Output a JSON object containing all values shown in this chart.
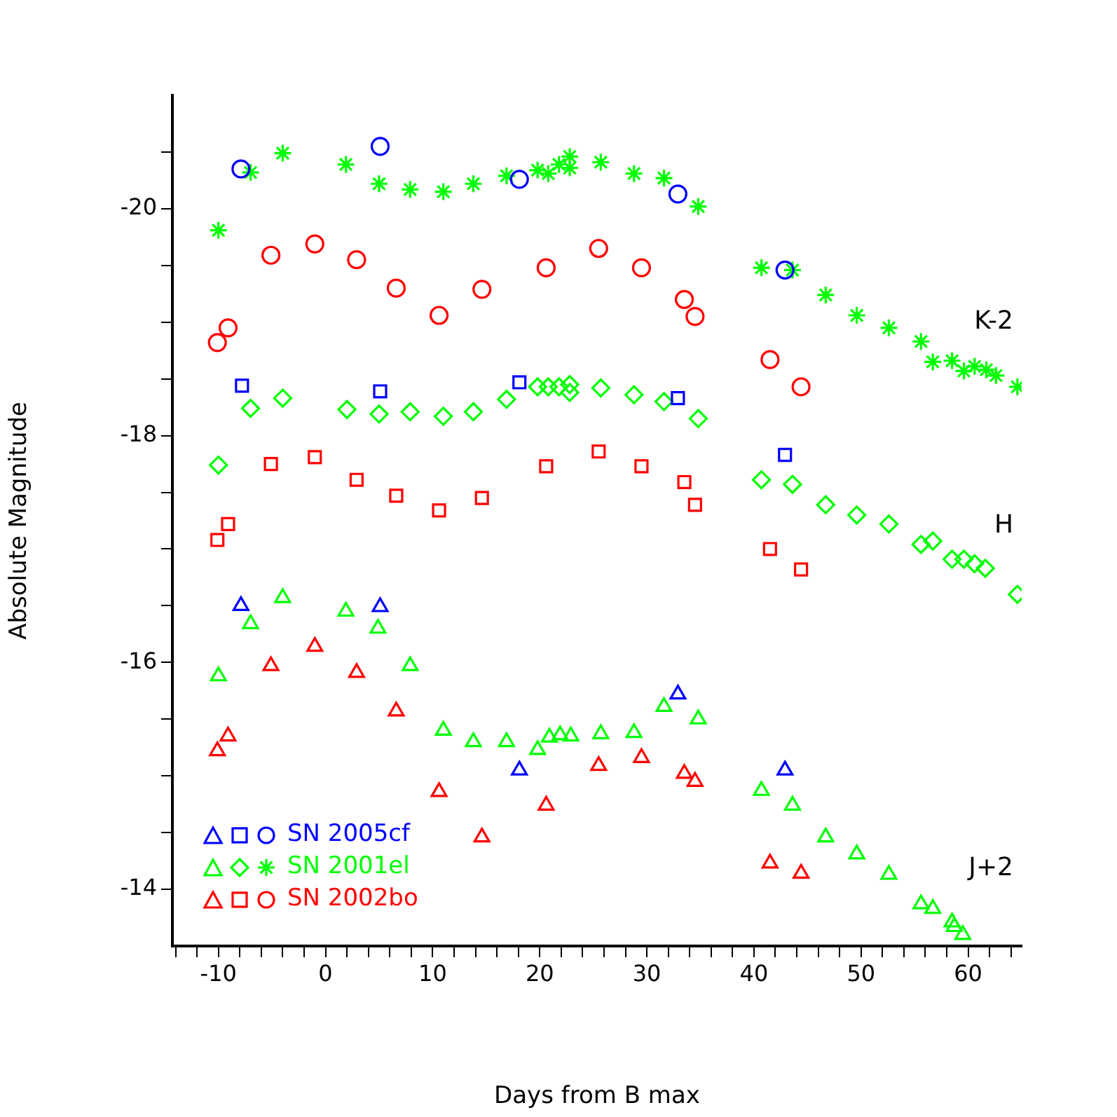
{
  "chart_data": {
    "type": "scatter",
    "xlabel": "Days from B max",
    "ylabel": "Absolute Magnitude",
    "xlim": [
      -14.3,
      65
    ],
    "xticks": [
      {
        "value": -14,
        "label": null
      },
      {
        "value": -12,
        "label": null
      },
      -10,
      {
        "value": -8,
        "label": null
      },
      {
        "value": -6,
        "label": null
      },
      {
        "value": -4,
        "label": null
      },
      {
        "value": -2,
        "label": null
      },
      0,
      {
        "value": 2,
        "label": null
      },
      {
        "value": 4,
        "label": null
      },
      {
        "value": 6,
        "label": null
      },
      {
        "value": 8,
        "label": null
      },
      10,
      {
        "value": 12,
        "label": null
      },
      {
        "value": 14,
        "label": null
      },
      {
        "value": 16,
        "label": null
      },
      {
        "value": 18,
        "label": null
      },
      20,
      {
        "value": 22,
        "label": null
      },
      {
        "value": 24,
        "label": null
      },
      {
        "value": 26,
        "label": null
      },
      {
        "value": 28,
        "label": null
      },
      30,
      {
        "value": 32,
        "label": null
      },
      {
        "value": 34,
        "label": null
      },
      {
        "value": 36,
        "label": null
      },
      {
        "value": 38,
        "label": null
      },
      40,
      {
        "value": 42,
        "label": null
      },
      {
        "value": 44,
        "label": null
      },
      {
        "value": 46,
        "label": null
      },
      {
        "value": 48,
        "label": null
      },
      50,
      {
        "value": 52,
        "label": null
      },
      {
        "value": 54,
        "label": null
      },
      {
        "value": 56,
        "label": null
      },
      {
        "value": 58,
        "label": null
      },
      60,
      {
        "value": 62,
        "label": null
      },
      {
        "value": 64,
        "label": null
      }
    ],
    "ylim": [
      -13.5,
      -21
    ],
    "yticks": [
      {
        "value": -20.5,
        "label": null
      },
      -20,
      {
        "value": -19.5,
        "label": null
      },
      {
        "value": -19,
        "label": null
      },
      {
        "value": -18.5,
        "label": null
      },
      -18,
      {
        "value": -17.5,
        "label": null
      },
      {
        "value": -17,
        "label": null
      },
      {
        "value": -16.5,
        "label": null
      },
      -16,
      {
        "value": -15.5,
        "label": null
      },
      {
        "value": -15,
        "label": null
      },
      {
        "value": -14.5,
        "label": null
      },
      -14
    ],
    "grid": false,
    "legend": "bottom left",
    "annotations": [
      "K-2",
      "H",
      "J+2"
    ],
    "series": [
      {
        "name": "SN 2005cf",
        "color": "#0000ff",
        "marker": "triangle",
        "x": [
          -7.9,
          5.1,
          18.1,
          32.9,
          42.9
        ],
        "values": [
          -16.5,
          -16.49,
          -15.05,
          -15.72,
          -15.05
        ]
      },
      {
        "color": "#0000ff",
        "marker": "square",
        "x": [
          -7.8,
          5.1,
          18.1,
          32.9,
          42.9
        ],
        "values": [
          -18.44,
          -18.39,
          -18.47,
          -18.33,
          -17.83
        ]
      },
      {
        "color": "#0000ff",
        "marker": "circle",
        "x": [
          -7.9,
          5.1,
          18.1,
          32.9,
          42.9
        ],
        "values": [
          -20.35,
          -20.55,
          -20.26,
          -20.13,
          -19.46
        ]
      },
      {
        "name": "SN 2001el",
        "color": "#00ff00",
        "marker": "triangle",
        "x": [
          -10,
          -7,
          -4,
          1.9,
          4.9,
          7.9,
          11,
          13.8,
          16.9,
          19.8,
          20.9,
          21.9,
          22.9,
          25.7,
          28.8,
          31.6,
          34.8,
          40.7,
          43.6,
          46.7,
          49.6,
          52.6,
          55.6,
          56.7,
          58.5,
          58.7,
          59.5
        ],
        "values": [
          -15.88,
          -16.34,
          -16.57,
          -16.45,
          -16.3,
          -15.97,
          -15.4,
          -15.3,
          -15.3,
          -15.23,
          -15.34,
          -15.36,
          -15.35,
          -15.37,
          -15.38,
          -15.61,
          -15.5,
          -14.87,
          -14.74,
          -14.46,
          -14.31,
          -14.13,
          -13.87,
          -13.83,
          -13.71,
          -13.67,
          -13.6
        ]
      },
      {
        "color": "#00ff00",
        "marker": "diamond",
        "x": [
          -10,
          -7,
          -4,
          2,
          5,
          7.9,
          11,
          13.8,
          16.9,
          19.8,
          20.8,
          21.8,
          22.8,
          22.8,
          25.7,
          28.8,
          31.6,
          34.8,
          40.7,
          43.6,
          46.7,
          49.6,
          52.6,
          55.6,
          56.7,
          58.5,
          59.6,
          60.6,
          61.6,
          64.6
        ],
        "values": [
          -17.74,
          -18.24,
          -18.33,
          -18.23,
          -18.19,
          -18.21,
          -18.17,
          -18.21,
          -18.32,
          -18.43,
          -18.43,
          -18.43,
          -18.45,
          -18.38,
          -18.42,
          -18.36,
          -18.3,
          -18.15,
          -17.61,
          -17.57,
          -17.39,
          -17.3,
          -17.22,
          -17.04,
          -17.07,
          -16.91,
          -16.91,
          -16.87,
          -16.83,
          -16.6
        ]
      },
      {
        "color": "#00ff00",
        "marker": "cross",
        "x": [
          -10,
          -7,
          -4,
          1.9,
          5,
          7.9,
          11,
          13.8,
          16.9,
          19.8,
          20.8,
          21.8,
          22.8,
          22.8,
          25.7,
          28.8,
          31.6,
          34.8,
          40.7,
          43.6,
          46.7,
          49.6,
          52.6,
          55.6,
          56.7,
          58.5,
          59.6,
          60.6,
          61.7,
          62.6,
          64.6
        ],
        "values": [
          -19.81,
          -20.32,
          -20.49,
          -20.39,
          -20.22,
          -20.17,
          -20.15,
          -20.22,
          -20.29,
          -20.34,
          -20.31,
          -20.39,
          -20.46,
          -20.36,
          -20.41,
          -20.31,
          -20.27,
          -20.02,
          -19.48,
          -19.46,
          -19.24,
          -19.06,
          -18.95,
          -18.83,
          -18.65,
          -18.66,
          -18.57,
          -18.61,
          -18.58,
          -18.53,
          -18.43
        ]
      },
      {
        "name": "SN 2002bo",
        "color": "#ff0000",
        "marker": "triangle",
        "x": [
          -10.1,
          -9.1,
          -5.1,
          -1,
          2.9,
          6.6,
          10.6,
          14.6,
          20.6,
          25.5,
          29.5,
          33.5,
          34.5,
          41.5,
          44.4
        ],
        "values": [
          -15.22,
          -15.35,
          -15.97,
          -16.14,
          -15.91,
          -15.57,
          -14.86,
          -14.46,
          -14.74,
          -15.09,
          -15.16,
          -15.02,
          -14.95,
          -14.23,
          -14.14
        ]
      },
      {
        "color": "#ff0000",
        "marker": "square",
        "x": [
          -10.1,
          -9.1,
          -5.1,
          -1,
          2.9,
          6.6,
          10.6,
          14.6,
          20.6,
          25.5,
          29.5,
          33.5,
          34.5,
          41.5,
          44.4
        ],
        "values": [
          -17.08,
          -17.22,
          -17.75,
          -17.81,
          -17.61,
          -17.47,
          -17.34,
          -17.45,
          -17.73,
          -17.86,
          -17.73,
          -17.59,
          -17.39,
          -17,
          -16.82
        ]
      },
      {
        "color": "#ff0000",
        "marker": "circle",
        "x": [
          -10.1,
          -9.1,
          -5.1,
          -1,
          2.9,
          6.6,
          10.6,
          14.6,
          20.6,
          25.5,
          29.5,
          33.5,
          34.5,
          41.5,
          44.4
        ],
        "values": [
          -18.82,
          -18.95,
          -19.59,
          -19.69,
          -19.55,
          -19.3,
          -19.06,
          -19.29,
          -19.48,
          -19.65,
          -19.48,
          -19.2,
          -19.05,
          -18.67,
          -18.43
        ]
      }
    ]
  }
}
